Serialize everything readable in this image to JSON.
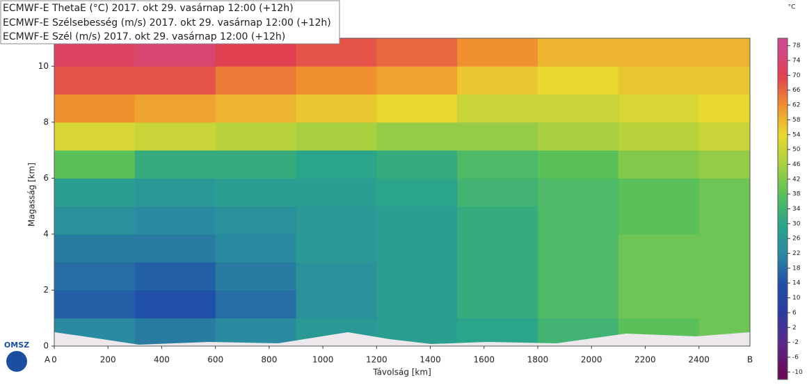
{
  "chart_data": {
    "type": "heatmap",
    "legend_lines": [
      "ECMWF-E ThetaE (°C) 2017. okt 29. vasárnap 12:00 (+12h)",
      "ECMWF-E Szélsebesség (m/s) 2017. okt 29. vasárnap 12:00 (+12h)",
      "ECMWF-E Szél (m/s) 2017. okt 29. vasárnap 12:00 (+12h)"
    ],
    "xlabel": "Távolság [km]",
    "ylabel": "Magasság [km]",
    "start_label": "A",
    "end_label": "B",
    "logo": "OMSZ",
    "xlim": [
      0,
      2590
    ],
    "xticks": [
      0,
      200,
      400,
      600,
      800,
      1000,
      1200,
      1400,
      1600,
      1800,
      2000,
      2200,
      2400
    ],
    "ylim": [
      0,
      11
    ],
    "yticks": [
      0,
      2,
      4,
      6,
      8,
      10
    ],
    "field": {
      "x": [
        150,
        450,
        750,
        1050,
        1350,
        1650,
        1950,
        2250,
        2550
      ],
      "y": [
        0.5,
        1.5,
        2.5,
        3.5,
        4.5,
        5.5,
        6.5,
        7.5,
        8.5,
        9.5,
        10.5
      ],
      "values": [
        [
          22,
          20,
          22,
          26,
          28,
          30,
          34,
          38,
          40
        ],
        [
          16,
          14,
          18,
          24,
          28,
          32,
          36,
          40,
          40
        ],
        [
          18,
          16,
          20,
          24,
          28,
          32,
          36,
          40,
          40
        ],
        [
          20,
          20,
          22,
          26,
          28,
          32,
          36,
          40,
          40
        ],
        [
          24,
          22,
          24,
          26,
          28,
          32,
          36,
          38,
          40
        ],
        [
          28,
          26,
          28,
          28,
          30,
          34,
          36,
          38,
          40
        ],
        [
          38,
          32,
          32,
          30,
          32,
          36,
          38,
          42,
          44
        ],
        [
          52,
          50,
          48,
          46,
          44,
          44,
          46,
          48,
          50
        ],
        [
          62,
          60,
          58,
          56,
          54,
          50,
          50,
          52,
          54
        ],
        [
          68,
          68,
          64,
          62,
          60,
          56,
          54,
          56,
          56
        ],
        [
          72,
          74,
          70,
          68,
          66,
          62,
          58,
          58,
          58
        ]
      ]
    },
    "colorbar": {
      "unit": "°C",
      "lim": [
        -12,
        80
      ],
      "ticks": [
        -10,
        -6,
        -2,
        2,
        6,
        10,
        14,
        18,
        22,
        26,
        30,
        34,
        38,
        42,
        46,
        50,
        54,
        58,
        62,
        66,
        70,
        74,
        78
      ],
      "stops": [
        [
          -10,
          "#6a0a5a"
        ],
        [
          -2,
          "#5a2a8a"
        ],
        [
          6,
          "#2a3aa0"
        ],
        [
          14,
          "#2050a8"
        ],
        [
          22,
          "#2a8aa0"
        ],
        [
          30,
          "#2aa58a"
        ],
        [
          38,
          "#5ac05a"
        ],
        [
          46,
          "#a8d040"
        ],
        [
          54,
          "#e8d830"
        ],
        [
          62,
          "#f09030"
        ],
        [
          70,
          "#e04050"
        ],
        [
          78,
          "#d04a90"
        ]
      ]
    }
  }
}
